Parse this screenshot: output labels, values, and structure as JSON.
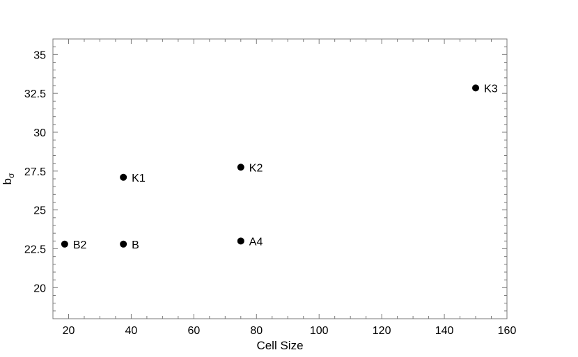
{
  "chart_data": {
    "type": "scatter",
    "title": "",
    "xlabel": "Cell Size",
    "ylabel_main": "b",
    "ylabel_sub": "σ",
    "xlim": [
      15,
      160
    ],
    "ylim": [
      18,
      36
    ],
    "x_ticks": [
      20,
      40,
      60,
      80,
      100,
      120,
      140,
      160
    ],
    "x_tick_labels": [
      "20",
      "40",
      "60",
      "80",
      "100",
      "120",
      "140",
      "160"
    ],
    "y_ticks": [
      20,
      22.5,
      25,
      27.5,
      30,
      32.5,
      35
    ],
    "y_tick_labels": [
      "20",
      "22.5",
      "25",
      "27.5",
      "30",
      "32.5",
      "35"
    ],
    "grid": false,
    "points": [
      {
        "label": "B2",
        "x": 18.75,
        "y": 22.8
      },
      {
        "label": "B",
        "x": 37.5,
        "y": 22.8
      },
      {
        "label": "K1",
        "x": 37.5,
        "y": 27.1
      },
      {
        "label": "K2",
        "x": 75,
        "y": 27.75
      },
      {
        "label": "A4",
        "x": 75,
        "y": 23.0
      },
      {
        "label": "K3",
        "x": 150,
        "y": 32.85
      }
    ]
  }
}
